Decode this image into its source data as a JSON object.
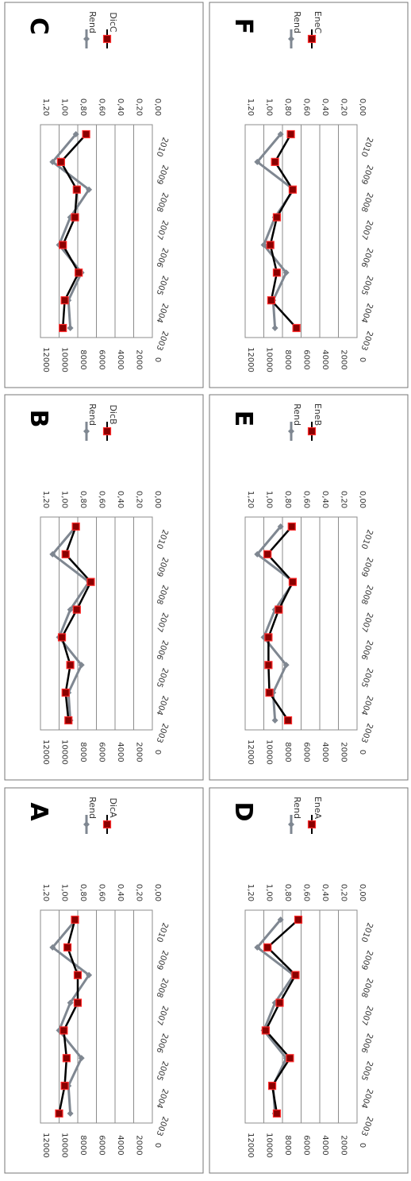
{
  "colors": {
    "rend": "#7f8791",
    "other": "#000000",
    "marker_fill": "#8b0000",
    "marker_edge": "#ff2b2b",
    "grid": "#8c8c8c",
    "frame": "#777777"
  },
  "chart_data": [
    {
      "panel_label": "A",
      "type": "line",
      "categories": [
        "2003",
        "2004",
        "2005",
        "2006",
        "2007",
        "2008",
        "2009",
        "2010"
      ],
      "left_axis": {
        "range": [
          0,
          12000
        ],
        "ticks": [
          "0",
          "2000",
          "4000",
          "6000",
          "8000",
          "10000",
          "12000"
        ]
      },
      "right_axis": {
        "range": [
          0,
          1.2
        ],
        "ticks": [
          "0,00",
          "0,20",
          "0,40",
          "0,60",
          "0,80",
          "1,00",
          "1,20"
        ]
      },
      "series": [
        {
          "name": "Rend",
          "axis": "right",
          "values": [
            0.88,
            0.9,
            0.76,
            1.0,
            0.88,
            0.68,
            1.07,
            0.82
          ]
        },
        {
          "name": "DicA",
          "axis": "left",
          "values": [
            10000,
            9400,
            9200,
            9500,
            8000,
            8000,
            9100,
            8300
          ]
        }
      ]
    },
    {
      "panel_label": "B",
      "type": "line",
      "categories": [
        "2003",
        "2004",
        "2005",
        "2006",
        "2007",
        "2008",
        "2009",
        "2010"
      ],
      "left_axis": {
        "range": [
          0,
          12000
        ],
        "ticks": [
          "0",
          "2000",
          "4000",
          "6000",
          "8000",
          "10000",
          "12000"
        ]
      },
      "right_axis": {
        "range": [
          0,
          1.2
        ],
        "ticks": [
          "0,00",
          "0,20",
          "0,40",
          "0,60",
          "0,80",
          "1,00",
          "1,20"
        ]
      },
      "series": [
        {
          "name": "Rend",
          "axis": "right",
          "values": [
            0.88,
            0.9,
            0.76,
            1.0,
            0.88,
            0.68,
            1.07,
            0.82
          ]
        },
        {
          "name": "DicB",
          "axis": "left",
          "values": [
            9000,
            9300,
            8800,
            9700,
            8100,
            6600,
            9300,
            8200
          ]
        }
      ]
    },
    {
      "panel_label": "C",
      "type": "line",
      "categories": [
        "2003",
        "2004",
        "2005",
        "2006",
        "2007",
        "2008",
        "2009",
        "2010"
      ],
      "left_axis": {
        "range": [
          0,
          12000
        ],
        "ticks": [
          "0",
          "2000",
          "4000",
          "6000",
          "8000",
          "10000",
          "12000"
        ]
      },
      "right_axis": {
        "range": [
          0,
          1.2
        ],
        "ticks": [
          "0,00",
          "0,20",
          "0,40",
          "0,60",
          "0,80",
          "1,00",
          "1,20"
        ]
      },
      "series": [
        {
          "name": "Rend",
          "axis": "right",
          "values": [
            0.88,
            0.9,
            0.76,
            1.0,
            0.88,
            0.68,
            1.07,
            0.82
          ]
        },
        {
          "name": "DicC",
          "axis": "left",
          "values": [
            9600,
            9400,
            7900,
            9600,
            8300,
            8100,
            9800,
            7100
          ]
        }
      ]
    },
    {
      "panel_label": "D",
      "type": "line",
      "categories": [
        "2003",
        "2004",
        "2005",
        "2006",
        "2007",
        "2008",
        "2009",
        "2010"
      ],
      "left_axis": {
        "range": [
          0,
          12000
        ],
        "ticks": [
          "0",
          "2000",
          "4000",
          "6000",
          "8000",
          "10000",
          "12000"
        ]
      },
      "right_axis": {
        "range": [
          0,
          1.2
        ],
        "ticks": [
          "0,00",
          "0,20",
          "0,40",
          "0,60",
          "0,80",
          "1,00",
          "1,20"
        ]
      },
      "series": [
        {
          "name": "Rend",
          "axis": "right",
          "values": [
            0.88,
            0.9,
            0.76,
            1.0,
            0.88,
            0.68,
            1.07,
            0.82
          ]
        },
        {
          "name": "EneA",
          "axis": "left",
          "values": [
            8600,
            9100,
            7200,
            9800,
            8300,
            6600,
            9600,
            6300
          ]
        }
      ]
    },
    {
      "panel_label": "E",
      "type": "line",
      "categories": [
        "2003",
        "2004",
        "2005",
        "2006",
        "2007",
        "2008",
        "2009",
        "2010"
      ],
      "left_axis": {
        "range": [
          0,
          12000
        ],
        "ticks": [
          "0",
          "2000",
          "4000",
          "6000",
          "8000",
          "10000",
          "12000"
        ]
      },
      "right_axis": {
        "range": [
          0,
          1.2
        ],
        "ticks": [
          "0,00",
          "0,20",
          "0,40",
          "0,60",
          "0,80",
          "1,00",
          "1,20"
        ]
      },
      "series": [
        {
          "name": "Rend",
          "axis": "right",
          "values": [
            0.88,
            0.9,
            0.76,
            1.0,
            0.88,
            0.68,
            1.07,
            0.82
          ]
        },
        {
          "name": "EneB",
          "axis": "left",
          "values": [
            7400,
            9400,
            9500,
            9500,
            8400,
            6900,
            9600,
            7000
          ]
        }
      ]
    },
    {
      "panel_label": "F",
      "type": "line",
      "categories": [
        "2003",
        "2004",
        "2005",
        "2006",
        "2007",
        "2008",
        "2009",
        "2010"
      ],
      "left_axis": {
        "range": [
          0,
          12000
        ],
        "ticks": [
          "0",
          "2000",
          "4000",
          "6000",
          "8000",
          "10000",
          "12000"
        ]
      },
      "right_axis": {
        "range": [
          0,
          1.2
        ],
        "ticks": [
          "0,00",
          "0,20",
          "0,40",
          "0,60",
          "0,80",
          "1,00",
          "1,20"
        ]
      },
      "series": [
        {
          "name": "Rend",
          "axis": "right",
          "values": [
            0.88,
            0.9,
            0.76,
            1.0,
            0.88,
            0.68,
            1.07,
            0.82
          ]
        },
        {
          "name": "EneC",
          "axis": "left",
          "values": [
            6500,
            9200,
            8600,
            9300,
            8600,
            6900,
            8800,
            7100
          ]
        }
      ]
    }
  ]
}
